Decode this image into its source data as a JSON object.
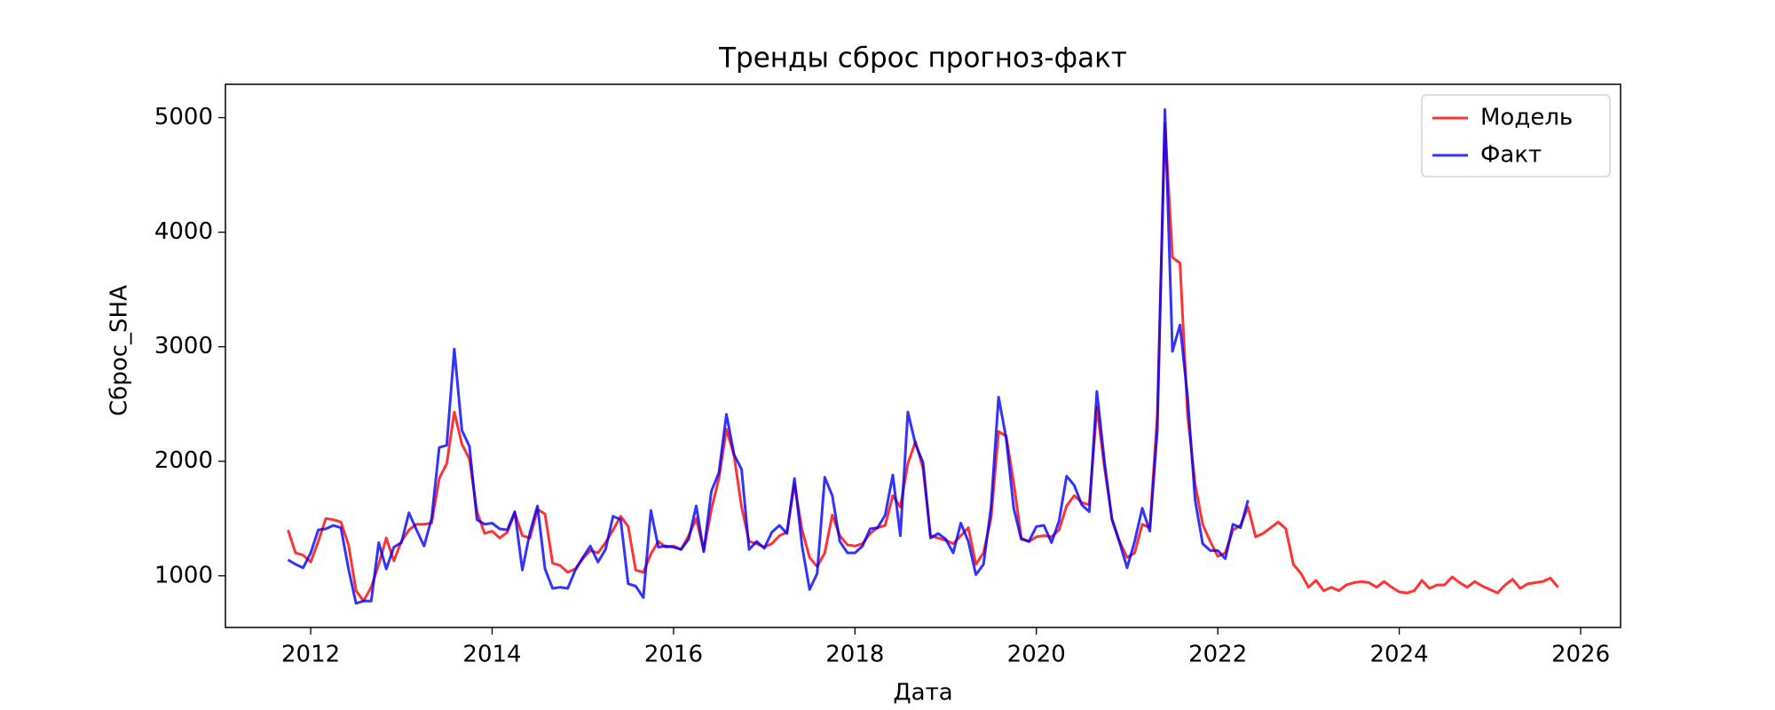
{
  "chart_data": {
    "type": "line",
    "title": "Тренды сброс прогноз-факт",
    "x_label": "Дата",
    "y_label": "Сброс_SHA",
    "legend": "upper right",
    "xlim": [
      2011.06,
      2026.44
    ],
    "xticks": [
      2012,
      2014,
      2016,
      2018,
      2020,
      2022,
      2024,
      2026
    ],
    "ylim": [
      549,
      5291
    ],
    "yticks": [
      1000,
      2000,
      3000,
      4000,
      5000
    ],
    "x": [
      2011.75,
      2011.833,
      2011.917,
      2012,
      2012.083,
      2012.167,
      2012.25,
      2012.333,
      2012.417,
      2012.5,
      2012.583,
      2012.667,
      2012.75,
      2012.833,
      2012.917,
      2013,
      2013.083,
      2013.167,
      2013.25,
      2013.333,
      2013.417,
      2013.5,
      2013.583,
      2013.667,
      2013.75,
      2013.833,
      2013.917,
      2014,
      2014.083,
      2014.167,
      2014.25,
      2014.333,
      2014.417,
      2014.5,
      2014.583,
      2014.667,
      2014.75,
      2014.833,
      2014.917,
      2015,
      2015.083,
      2015.167,
      2015.25,
      2015.333,
      2015.417,
      2015.5,
      2015.583,
      2015.667,
      2015.75,
      2015.833,
      2015.917,
      2016,
      2016.083,
      2016.167,
      2016.25,
      2016.333,
      2016.417,
      2016.5,
      2016.583,
      2016.667,
      2016.75,
      2016.833,
      2016.917,
      2017,
      2017.083,
      2017.167,
      2017.25,
      2017.333,
      2017.417,
      2017.5,
      2017.583,
      2017.667,
      2017.75,
      2017.833,
      2017.917,
      2018,
      2018.083,
      2018.167,
      2018.25,
      2018.333,
      2018.417,
      2018.5,
      2018.583,
      2018.667,
      2018.75,
      2018.833,
      2018.917,
      2019,
      2019.083,
      2019.167,
      2019.25,
      2019.333,
      2019.417,
      2019.5,
      2019.583,
      2019.667,
      2019.75,
      2019.833,
      2019.917,
      2020,
      2020.083,
      2020.167,
      2020.25,
      2020.333,
      2020.417,
      2020.5,
      2020.583,
      2020.667,
      2020.75,
      2020.833,
      2020.917,
      2021,
      2021.083,
      2021.167,
      2021.25,
      2021.333,
      2021.417,
      2021.5,
      2021.583,
      2021.667,
      2021.75,
      2021.833,
      2021.917,
      2022,
      2022.083,
      2022.167,
      2022.25,
      2022.333,
      2022.417,
      2022.5,
      2022.583,
      2022.667,
      2022.75,
      2022.833,
      2022.917,
      2023,
      2023.083,
      2023.167,
      2023.25,
      2023.333,
      2023.417,
      2023.5,
      2023.583,
      2023.667,
      2023.75,
      2023.833,
      2023.917,
      2024,
      2024.083,
      2024.167,
      2024.25,
      2024.333,
      2024.417,
      2024.5,
      2024.583,
      2024.667,
      2024.75,
      2024.833,
      2024.917,
      2025,
      2025.083,
      2025.167,
      2025.25,
      2025.333,
      2025.417,
      2025.5,
      2025.583,
      2025.667,
      2025.75
    ],
    "series": [
      {
        "name": "Модель",
        "color": "#ff0000",
        "values": [
          1400,
          1200,
          1180,
          1120,
          1300,
          1500,
          1490,
          1470,
          1270,
          870,
          780,
          900,
          1100,
          1330,
          1130,
          1300,
          1400,
          1450,
          1450,
          1460,
          1850,
          1980,
          2430,
          2150,
          2020,
          1560,
          1370,
          1390,
          1330,
          1380,
          1550,
          1350,
          1330,
          1580,
          1540,
          1110,
          1090,
          1030,
          1060,
          1150,
          1220,
          1200,
          1290,
          1400,
          1520,
          1430,
          1050,
          1030,
          1190,
          1300,
          1250,
          1260,
          1230,
          1350,
          1500,
          1220,
          1580,
          1850,
          2280,
          2050,
          1600,
          1300,
          1280,
          1250,
          1280,
          1350,
          1380,
          1800,
          1400,
          1160,
          1080,
          1200,
          1530,
          1350,
          1270,
          1260,
          1280,
          1370,
          1420,
          1440,
          1700,
          1600,
          1980,
          2170,
          1940,
          1350,
          1330,
          1310,
          1280,
          1350,
          1420,
          1100,
          1200,
          1500,
          2260,
          2220,
          1810,
          1330,
          1300,
          1340,
          1350,
          1340,
          1400,
          1610,
          1700,
          1640,
          1620,
          2470,
          1950,
          1500,
          1300,
          1160,
          1200,
          1450,
          1420,
          2400,
          4950,
          3780,
          3730,
          2400,
          1800,
          1450,
          1300,
          1170,
          1200,
          1400,
          1440,
          1600,
          1340,
          1370,
          1420,
          1470,
          1410,
          1100,
          1020,
          900,
          960,
          870,
          900,
          870,
          920,
          940,
          950,
          940,
          900,
          950,
          900,
          860,
          850,
          870,
          960,
          890,
          920,
          920,
          990,
          940,
          900,
          950,
          910,
          880,
          850,
          920,
          970,
          890,
          930,
          940,
          950,
          980,
          900
        ]
      },
      {
        "name": "Факт",
        "color": "#0000ff",
        "values": [
          1140,
          1100,
          1070,
          1200,
          1400,
          1410,
          1440,
          1420,
          1060,
          760,
          780,
          780,
          1290,
          1060,
          1250,
          1290,
          1550,
          1400,
          1260,
          1500,
          2120,
          2140,
          2980,
          2270,
          2130,
          1490,
          1450,
          1460,
          1410,
          1400,
          1560,
          1050,
          1380,
          1610,
          1060,
          890,
          900,
          890,
          1050,
          1160,
          1260,
          1120,
          1230,
          1520,
          1490,
          930,
          910,
          810,
          1570,
          1250,
          1260,
          1250,
          1230,
          1320,
          1610,
          1210,
          1740,
          1900,
          2410,
          2060,
          1930,
          1230,
          1300,
          1240,
          1380,
          1440,
          1370,
          1850,
          1260,
          880,
          1020,
          1860,
          1700,
          1300,
          1200,
          1200,
          1260,
          1410,
          1420,
          1530,
          1880,
          1350,
          2430,
          2150,
          1990,
          1330,
          1370,
          1320,
          1200,
          1460,
          1300,
          1010,
          1100,
          1600,
          2560,
          2200,
          1590,
          1320,
          1300,
          1430,
          1440,
          1290,
          1480,
          1870,
          1790,
          1620,
          1560,
          2610,
          2000,
          1490,
          1290,
          1070,
          1300,
          1590,
          1390,
          2270,
          5070,
          2960,
          3190,
          2560,
          1660,
          1280,
          1220,
          1220,
          1150,
          1450,
          1420,
          1660,
          null,
          null,
          null,
          null,
          null,
          null,
          null,
          null,
          null,
          null,
          null,
          null,
          null,
          null,
          null,
          null,
          null,
          null,
          null,
          null,
          null,
          null,
          null,
          null,
          null,
          null,
          null,
          null,
          null,
          null,
          null,
          null,
          null,
          null,
          null,
          null,
          null,
          null,
          null,
          null,
          null
        ]
      }
    ]
  }
}
